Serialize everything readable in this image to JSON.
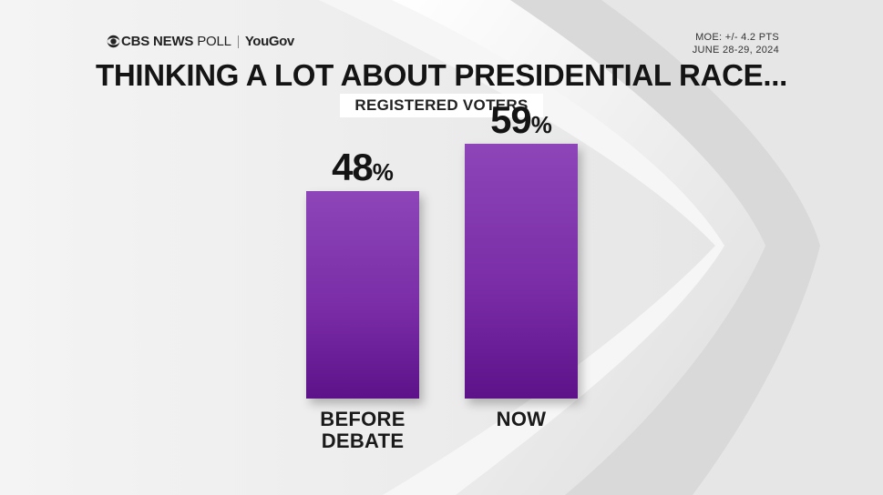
{
  "header": {
    "brand_cbs": "CBS NEWS",
    "brand_poll": "POLL",
    "brand_partner": "YouGov",
    "moe": "MOE: +/- 4.2 PTS",
    "dates": "JUNE 28-29, 2024"
  },
  "colors": {
    "bar": "#7a2da7",
    "background": "#ececec",
    "text": "#141414"
  },
  "chart_data": {
    "type": "bar",
    "title": "THINKING A LOT ABOUT PRESIDENTIAL RACE...",
    "subtitle": "REGISTERED VOTERS",
    "categories": [
      [
        "BEFORE",
        "DEBATE"
      ],
      [
        "NOW"
      ]
    ],
    "values": [
      48,
      59
    ],
    "value_suffix": "%",
    "ylim": [
      0,
      80
    ],
    "grid": false,
    "legend": "none"
  }
}
